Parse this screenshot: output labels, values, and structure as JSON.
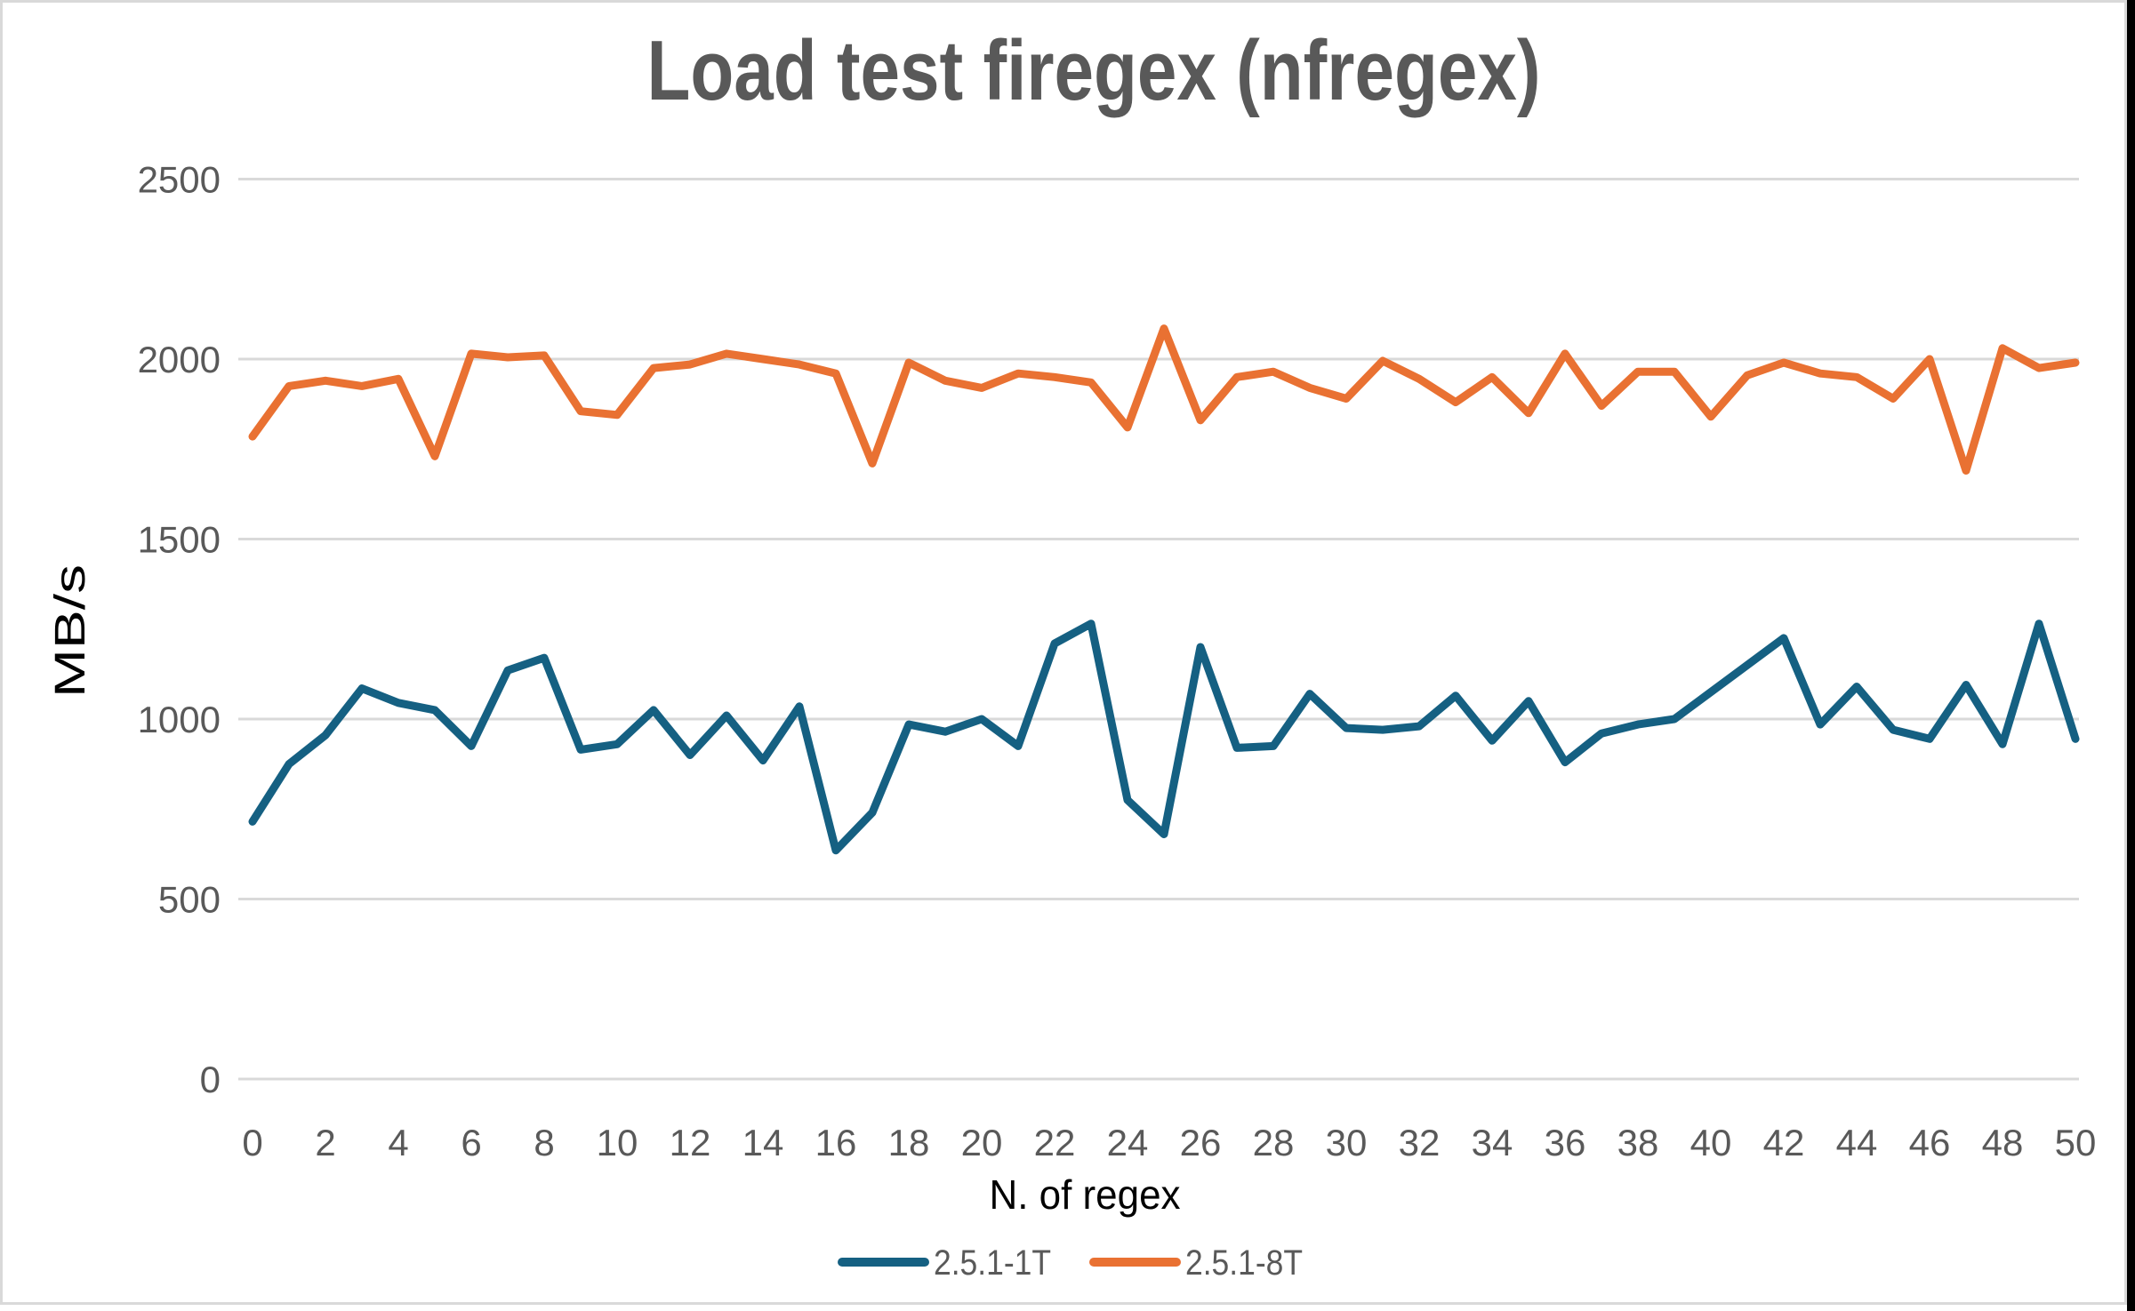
{
  "window": {
    "background": "#ffffff",
    "frame_border_color": "#d9d9d9",
    "right_strip_color": "#000000"
  },
  "chart_data": {
    "type": "line",
    "title": "Load test firegex (nfregex)",
    "title_color": "#595959",
    "xlabel": "N. of regex",
    "ylabel": "MB/s",
    "axis_title_color": "#000000",
    "tick_label_color": "#595959",
    "gridline_color": "#d9d9d9",
    "grid": true,
    "legend_position": "bottom",
    "ylim": [
      0,
      2500
    ],
    "y_ticks": [
      0,
      500,
      1000,
      1500,
      2000,
      2500
    ],
    "x": [
      0,
      1,
      2,
      3,
      4,
      5,
      6,
      7,
      8,
      9,
      10,
      11,
      12,
      13,
      14,
      15,
      16,
      17,
      18,
      19,
      20,
      21,
      22,
      23,
      24,
      25,
      26,
      27,
      28,
      29,
      30,
      31,
      32,
      33,
      34,
      35,
      36,
      37,
      38,
      39,
      40,
      41,
      42,
      43,
      44,
      45,
      46,
      47,
      48,
      49,
      50
    ],
    "x_tick_labels": [
      "0",
      "2",
      "4",
      "6",
      "8",
      "10",
      "12",
      "14",
      "16",
      "18",
      "20",
      "22",
      "24",
      "26",
      "28",
      "30",
      "32",
      "34",
      "36",
      "38",
      "40",
      "42",
      "44",
      "46",
      "48",
      "50"
    ],
    "series": [
      {
        "name": "2.5.1-1T",
        "color": "#156082",
        "values": [
          715,
          875,
          955,
          1085,
          1045,
          1025,
          925,
          1135,
          1170,
          915,
          930,
          1025,
          900,
          1010,
          885,
          1035,
          635,
          740,
          985,
          965,
          1000,
          925,
          1210,
          1265,
          775,
          680,
          1200,
          920,
          925,
          1070,
          975,
          970,
          980,
          1065,
          940,
          1050,
          880,
          960,
          985,
          1000,
          1075,
          1150,
          1225,
          985,
          1090,
          970,
          945,
          1095,
          930,
          1265,
          945
        ]
      },
      {
        "name": "2.5.1-8T",
        "color": "#E97132",
        "values": [
          1785,
          1925,
          1940,
          1925,
          1945,
          1730,
          2015,
          2005,
          2010,
          1855,
          1845,
          1975,
          1985,
          2015,
          2000,
          1985,
          1960,
          1710,
          1990,
          1940,
          1920,
          1960,
          1950,
          1935,
          1810,
          2085,
          1830,
          1950,
          1965,
          1920,
          1890,
          1995,
          1945,
          1880,
          1950,
          1850,
          2015,
          1870,
          1965,
          1965,
          1840,
          1955,
          1990,
          1960,
          1950,
          1890,
          2000,
          1690,
          2030,
          1975,
          1990
        ]
      }
    ]
  }
}
